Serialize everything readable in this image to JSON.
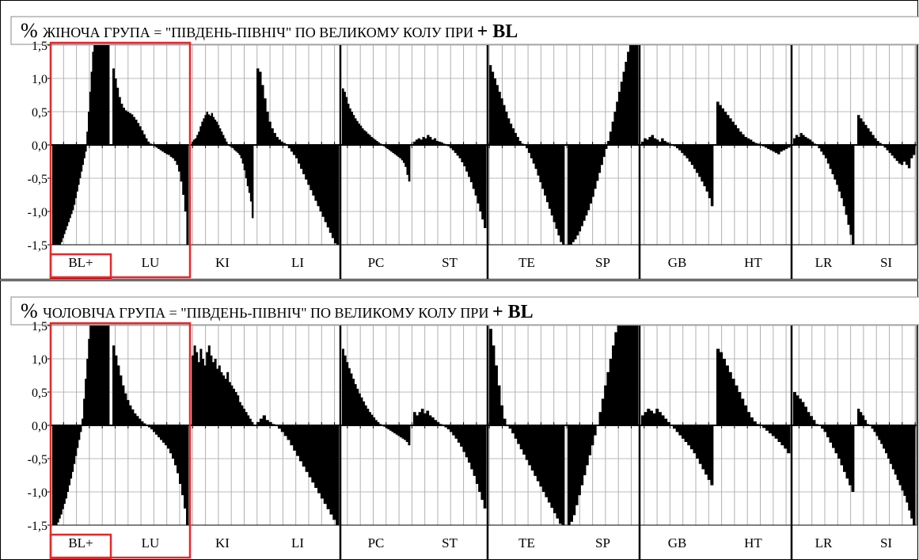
{
  "chart_data": [
    {
      "type": "bar",
      "title_prefix": "%",
      "title_main": "ЖІНОЧА ГРУПА  = \"ПІВДЕНЬ-ПІВНІЧ\" ПО ВЕЛИКОМУ КОЛУ ПРИ",
      "title_suffix": "+ BL",
      "yticks": [
        "1,5",
        "1,0",
        "0,5",
        "0,0",
        "-0,5",
        "-1,0",
        "-1,5"
      ],
      "ylim": [
        -1.5,
        1.5
      ],
      "groups": [
        "BL+",
        "LU",
        "KI",
        "LI",
        "PC",
        "ST",
        "TE",
        "SP",
        "GB",
        "HT",
        "LR",
        "SI"
      ],
      "highlight_color": "#e8262a",
      "bar_color": "#000000",
      "grid": true,
      "series": [
        {
          "group": "BL+",
          "values": [
            -1.5,
            -1.5,
            -1.5,
            -1.5,
            -1.5,
            -1.5,
            -1.46,
            -1.4,
            -1.34,
            -1.28,
            -1.22,
            -1.16,
            -1.1,
            -1.04,
            -0.98,
            -0.9,
            -0.8,
            -0.7,
            -0.6,
            -0.5,
            -0.4,
            -0.3,
            -0.2,
            -0.1,
            0.2,
            0.5,
            0.8,
            1.1,
            1.4,
            1.5,
            1.5,
            1.5,
            1.5,
            1.5,
            1.5,
            1.5,
            1.5,
            1.5,
            1.5,
            1.5
          ]
        },
        {
          "group": "LU",
          "values": [
            1.15,
            1.0,
            0.86,
            0.72,
            0.62,
            0.56,
            0.52,
            0.5,
            0.48,
            0.46,
            0.42,
            0.38,
            0.33,
            0.28,
            0.22,
            0.16,
            0.1,
            0.05,
            0.02,
            0.0,
            -0.02,
            -0.04,
            -0.06,
            -0.08,
            -0.1,
            -0.12,
            -0.14,
            -0.15,
            -0.18,
            -0.2,
            -0.24,
            -0.3,
            -0.4,
            -0.55,
            -0.75,
            -1.0,
            -1.5
          ]
        },
        {
          "group": "KI",
          "values": [
            0.05,
            0.08,
            0.1,
            0.15,
            0.2,
            0.28,
            0.35,
            0.4,
            0.45,
            0.5,
            0.46,
            0.44,
            0.48,
            0.42,
            0.38,
            0.35,
            0.3,
            0.25,
            0.2,
            0.15,
            0.1,
            0.05,
            0.0,
            -0.02,
            -0.03,
            -0.05,
            -0.08,
            -0.1,
            -0.12,
            -0.15,
            -0.2,
            -0.28,
            -0.38,
            -0.5,
            -0.62,
            -0.72,
            -0.85,
            -1.1
          ]
        },
        {
          "group": "LI",
          "values": [
            1.15,
            1.1,
            0.9,
            0.7,
            0.5,
            0.35,
            0.25,
            0.18,
            0.12,
            0.08,
            0.05,
            0.03,
            0.0,
            -0.05,
            -0.1,
            -0.15,
            -0.2,
            -0.28,
            -0.36,
            -0.44,
            -0.52,
            -0.6,
            -0.68,
            -0.76,
            -0.84,
            -0.92,
            -1.0,
            -1.08,
            -1.16,
            -1.24,
            -1.32,
            -1.4,
            -1.48,
            -1.5
          ]
        },
        {
          "group": "PC",
          "values": [
            0.85,
            0.8,
            0.72,
            0.62,
            0.55,
            0.5,
            0.45,
            0.4,
            0.36,
            0.32,
            0.29,
            0.25,
            0.22,
            0.2,
            0.17,
            0.15,
            0.12,
            0.1,
            0.08,
            0.06,
            0.04,
            0.02,
            0.0,
            -0.02,
            -0.04,
            -0.06,
            -0.08,
            -0.1,
            -0.12,
            -0.14,
            -0.16,
            -0.18,
            -0.2,
            -0.23,
            -0.27,
            -0.33,
            -0.45,
            -0.55
          ]
        },
        {
          "group": "ST",
          "values": [
            0.05,
            0.08,
            0.1,
            0.08,
            0.12,
            0.1,
            0.15,
            0.12,
            0.08,
            0.1,
            0.06,
            0.05,
            0.04,
            0.02,
            0.0,
            -0.02,
            -0.05,
            -0.08,
            -0.12,
            -0.16,
            -0.2,
            -0.26,
            -0.32,
            -0.4,
            -0.48,
            -0.56,
            -0.66,
            -0.76,
            -0.88,
            -1.0,
            -1.12,
            -1.25
          ]
        },
        {
          "group": "TE",
          "values": [
            1.2,
            1.1,
            1.0,
            0.9,
            0.8,
            0.7,
            0.6,
            0.5,
            0.4,
            0.32,
            0.25,
            0.18,
            0.12,
            0.06,
            0.02,
            0.0,
            -0.05,
            -0.12,
            -0.2,
            -0.28,
            -0.36,
            -0.46,
            -0.56,
            -0.66,
            -0.76,
            -0.86,
            -0.96,
            -1.06,
            -1.16,
            -1.26,
            -1.36,
            -1.46,
            -1.5
          ]
        },
        {
          "group": "SP",
          "values": [
            -1.5,
            -1.5,
            -1.46,
            -1.42,
            -1.36,
            -1.3,
            -1.22,
            -1.14,
            -1.06,
            -0.98,
            -0.88,
            -0.78,
            -0.66,
            -0.54,
            -0.42,
            -0.3,
            -0.18,
            -0.06,
            0.06,
            0.2,
            0.35,
            0.5,
            0.65,
            0.8,
            0.95,
            1.1,
            1.25,
            1.4,
            1.5,
            1.5,
            1.5,
            1.5
          ]
        },
        {
          "group": "GB",
          "values": [
            0.05,
            0.1,
            0.08,
            0.12,
            0.15,
            0.1,
            0.08,
            0.05,
            0.1,
            0.06,
            0.04,
            0.02,
            0.0,
            -0.02,
            -0.05,
            -0.08,
            -0.12,
            -0.16,
            -0.2,
            -0.25,
            -0.3,
            -0.36,
            -0.42,
            -0.48,
            -0.55,
            -0.62,
            -0.7,
            -0.8,
            -0.92
          ]
        },
        {
          "group": "HT",
          "values": [
            0.65,
            0.6,
            0.55,
            0.5,
            0.45,
            0.4,
            0.35,
            0.3,
            0.25,
            0.2,
            0.16,
            0.12,
            0.1,
            0.08,
            0.05,
            0.03,
            0.02,
            0.0,
            -0.02,
            -0.04,
            -0.06,
            -0.08,
            -0.1,
            -0.12,
            -0.14,
            -0.1,
            -0.08,
            -0.06,
            -0.04
          ]
        },
        {
          "group": "LR",
          "values": [
            0.1,
            0.15,
            0.12,
            0.18,
            0.15,
            0.12,
            0.1,
            0.08,
            0.05,
            0.02,
            0.0,
            -0.05,
            -0.1,
            -0.15,
            -0.2,
            -0.28,
            -0.36,
            -0.44,
            -0.52,
            -0.6,
            -0.7,
            -0.8,
            -0.92,
            -1.05,
            -1.2,
            -1.35,
            -1.5
          ]
        },
        {
          "group": "SI",
          "values": [
            0.45,
            0.4,
            0.35,
            0.3,
            0.25,
            0.2,
            0.15,
            0.1,
            0.06,
            0.03,
            0.0,
            -0.04,
            -0.08,
            -0.12,
            -0.16,
            -0.2,
            -0.24,
            -0.28,
            -0.3,
            -0.25,
            -0.3,
            -0.35,
            -0.2,
            -0.15
          ]
        }
      ]
    },
    {
      "type": "bar",
      "title_prefix": "%",
      "title_main": "ЧОЛОВІЧА ГРУПА  = \"ПІВДЕНЬ-ПІВНІЧ\" ПО ВЕЛИКОМУ КОЛУ  ПРИ",
      "title_suffix": "+ BL",
      "yticks": [
        "1,5",
        "1,0",
        "0,5",
        "0,0",
        "-0,5",
        "-1,0",
        "-1,5"
      ],
      "ylim": [
        -1.5,
        1.5
      ],
      "groups": [
        "BL+",
        "LU",
        "KI",
        "LI",
        "PC",
        "ST",
        "TE",
        "SP",
        "GB",
        "HT",
        "LR",
        "SI"
      ],
      "highlight_color": "#e8262a",
      "bar_color": "#000000",
      "grid": true,
      "series": [
        {
          "group": "BL+",
          "values": [
            -1.5,
            -1.5,
            -1.5,
            -1.46,
            -1.4,
            -1.34,
            -1.26,
            -1.18,
            -1.1,
            -1.0,
            -0.9,
            -0.8,
            -0.7,
            -0.58,
            -0.46,
            -0.34,
            -0.22,
            -0.1,
            0.1,
            0.4,
            0.7,
            1.0,
            1.3,
            1.5,
            1.5,
            1.5,
            1.5,
            1.5,
            1.5,
            1.5,
            1.5,
            1.5,
            1.5,
            1.5,
            1.5
          ]
        },
        {
          "group": "LU",
          "values": [
            1.2,
            1.05,
            0.9,
            0.75,
            0.6,
            0.48,
            0.38,
            0.3,
            0.24,
            0.18,
            0.14,
            0.1,
            0.06,
            0.03,
            0.0,
            -0.03,
            -0.06,
            -0.1,
            -0.14,
            -0.18,
            -0.22,
            -0.26,
            -0.3,
            -0.35,
            -0.42,
            -0.5,
            -0.6,
            -0.72,
            -0.88,
            -1.05,
            -1.25,
            -1.5
          ]
        },
        {
          "group": "KI",
          "values": [
            1.05,
            1.2,
            1.1,
            0.95,
            1.15,
            1.0,
            0.9,
            1.1,
            1.2,
            1.05,
            0.95,
            1.0,
            0.85,
            0.9,
            0.8,
            0.75,
            0.7,
            0.8,
            0.65,
            0.6,
            0.55,
            0.5,
            0.45,
            0.35,
            0.3,
            0.25,
            0.2,
            0.15,
            0.1,
            0.05
          ]
        },
        {
          "group": "LI",
          "values": [
            0.05,
            0.1,
            0.15,
            0.08,
            0.05,
            0.02,
            0.0,
            -0.05,
            -0.1,
            -0.16,
            -0.22,
            -0.3,
            -0.38,
            -0.46,
            -0.54,
            -0.62,
            -0.7,
            -0.78,
            -0.86,
            -0.94,
            -1.02,
            -1.1,
            -1.18,
            -1.26,
            -1.34,
            -1.42,
            -1.5
          ]
        },
        {
          "group": "PC",
          "values": [
            1.15,
            1.05,
            0.95,
            0.86,
            0.78,
            0.7,
            0.62,
            0.55,
            0.48,
            0.42,
            0.36,
            0.3,
            0.25,
            0.2,
            0.16,
            0.12,
            0.08,
            0.05,
            0.02,
            0.0,
            -0.02,
            -0.04,
            -0.06,
            -0.08,
            -0.1,
            -0.12,
            -0.14,
            -0.16,
            -0.18,
            -0.2,
            -0.22,
            -0.25,
            -0.3
          ]
        },
        {
          "group": "ST",
          "values": [
            0.2,
            0.15,
            0.2,
            0.25,
            0.18,
            0.22,
            0.15,
            0.12,
            0.08,
            0.05,
            0.02,
            0.0,
            -0.03,
            -0.06,
            -0.1,
            -0.15,
            -0.2,
            -0.26,
            -0.32,
            -0.4,
            -0.48,
            -0.56,
            -0.66,
            -0.76,
            -0.88,
            -1.0,
            -1.12,
            -1.25
          ]
        },
        {
          "group": "TE",
          "values": [
            1.45,
            1.2,
            0.9,
            0.6,
            0.3,
            0.1,
            0.0,
            -0.05,
            -0.12,
            -0.2,
            -0.28,
            -0.36,
            -0.44,
            -0.52,
            -0.6,
            -0.68,
            -0.76,
            -0.84,
            -0.92,
            -1.0,
            -1.08,
            -1.16,
            -1.24,
            -1.32,
            -1.4,
            -1.48,
            -1.5
          ]
        },
        {
          "group": "SP",
          "values": [
            -1.5,
            -1.45,
            -1.35,
            -1.2,
            -1.05,
            -0.9,
            -0.75,
            -0.6,
            -0.45,
            -0.3,
            -0.15,
            0.0,
            0.2,
            0.4,
            0.6,
            0.8,
            1.0,
            1.2,
            1.4,
            1.5,
            1.5,
            1.5,
            1.5,
            1.5,
            1.5,
            1.5,
            1.5
          ]
        },
        {
          "group": "GB",
          "values": [
            0.15,
            0.2,
            0.25,
            0.22,
            0.18,
            0.25,
            0.2,
            0.15,
            0.1,
            0.05,
            0.0,
            -0.05,
            -0.1,
            -0.15,
            -0.2,
            -0.25,
            -0.3,
            -0.36,
            -0.42,
            -0.5,
            -0.58,
            -0.66,
            -0.74,
            -0.82,
            -0.9
          ]
        },
        {
          "group": "HT",
          "values": [
            1.15,
            1.1,
            1.0,
            0.9,
            0.8,
            0.7,
            0.6,
            0.5,
            0.4,
            0.3,
            0.2,
            0.12,
            0.06,
            0.02,
            0.0,
            -0.04,
            -0.08,
            -0.12,
            -0.16,
            -0.2,
            -0.25,
            -0.3,
            -0.35,
            -0.42
          ]
        },
        {
          "group": "LR",
          "values": [
            0.5,
            0.45,
            0.4,
            0.35,
            0.28,
            0.2,
            0.14,
            0.08,
            0.02,
            0.0,
            -0.05,
            -0.1,
            -0.18,
            -0.26,
            -0.34,
            -0.42,
            -0.5,
            -0.6,
            -0.7,
            -0.8,
            -0.9,
            -1.0
          ]
        },
        {
          "group": "SI",
          "values": [
            0.25,
            0.2,
            0.15,
            0.08,
            0.02,
            0.0,
            -0.05,
            -0.1,
            -0.16,
            -0.22,
            -0.28,
            -0.35,
            -0.42,
            -0.5,
            -0.58,
            -0.66,
            -0.74,
            -0.82,
            -0.9,
            -0.98,
            -1.06,
            -1.16,
            -1.28,
            -1.4,
            -1.5
          ]
        }
      ]
    }
  ]
}
